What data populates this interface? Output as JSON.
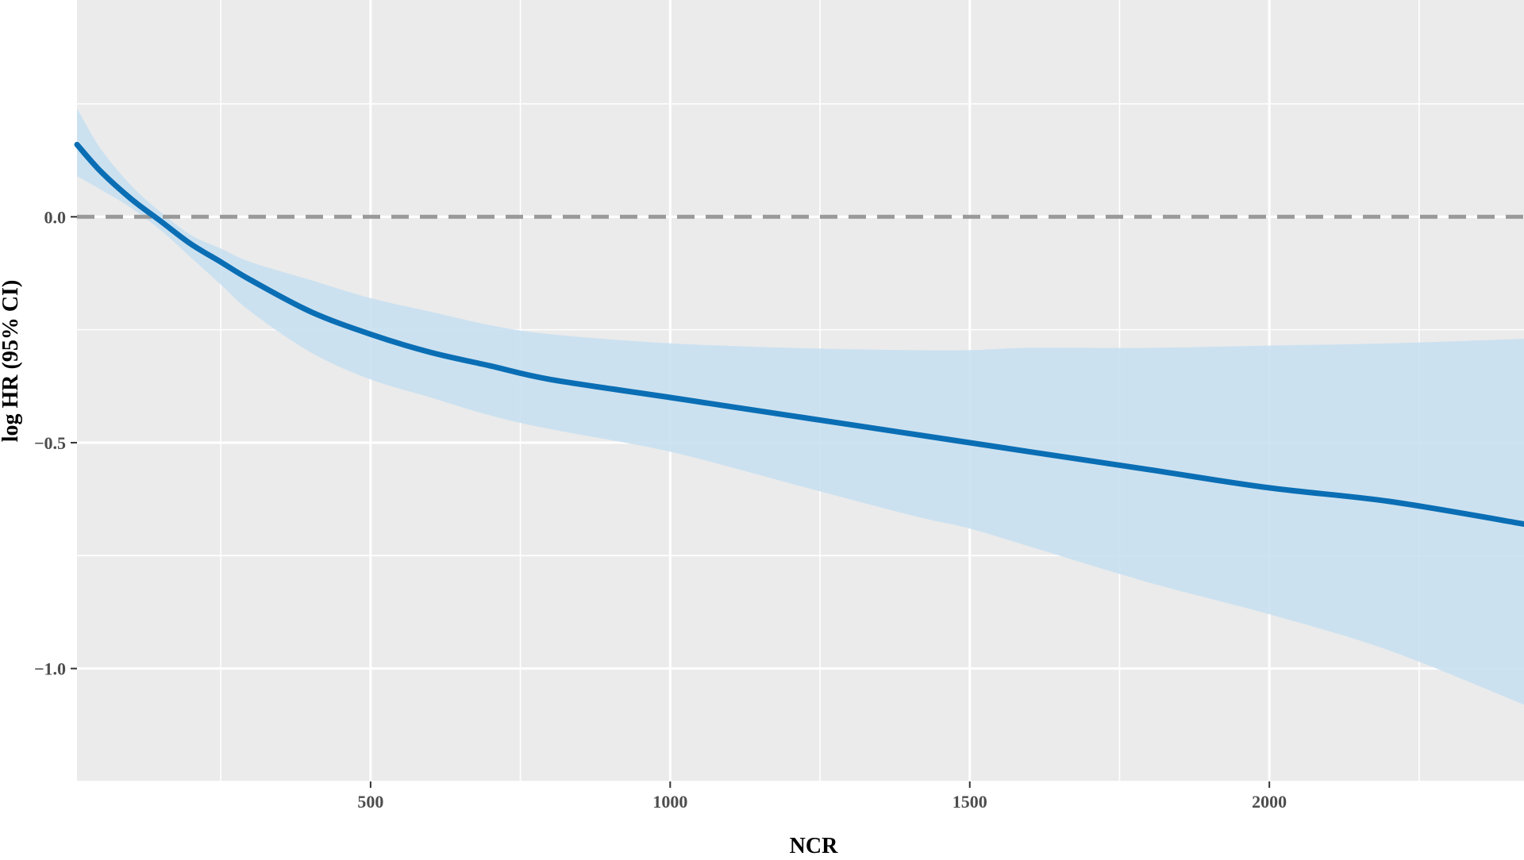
{
  "chart_data": {
    "type": "line",
    "title": "",
    "xlabel": "NCR",
    "ylabel": "log  HR (95% CI)",
    "xlim": [
      10,
      2425
    ],
    "ylim": [
      -1.25,
      0.48
    ],
    "x_ticks": [
      500,
      1000,
      1500,
      2000
    ],
    "x_tick_labels": [
      "500",
      "1000",
      "1500",
      "2000"
    ],
    "y_ticks": [
      -1.0,
      -0.5,
      0.0
    ],
    "y_tick_labels": [
      "−1.0",
      "−0.5",
      "0.0"
    ],
    "grid": true,
    "reference_line": {
      "y": 0.0,
      "style": "dashed",
      "color": "#999999"
    },
    "series": [
      {
        "line_color": "#0a6eb4",
        "ribbon_color": "#c9e0f1",
        "x": [
          10,
          50,
          100,
          150,
          200,
          250,
          300,
          400,
          500,
          600,
          700,
          800,
          1000,
          1200,
          1400,
          1500,
          1600,
          1800,
          2000,
          2200,
          2425
        ],
        "y": [
          0.16,
          0.1,
          0.04,
          -0.01,
          -0.06,
          -0.1,
          -0.14,
          -0.21,
          -0.26,
          -0.3,
          -0.33,
          -0.36,
          -0.4,
          -0.44,
          -0.48,
          -0.5,
          -0.52,
          -0.56,
          -0.6,
          -0.63,
          -0.68
        ],
        "lower": [
          0.09,
          0.06,
          0.02,
          -0.03,
          -0.09,
          -0.15,
          -0.21,
          -0.3,
          -0.36,
          -0.4,
          -0.44,
          -0.47,
          -0.52,
          -0.59,
          -0.66,
          -0.69,
          -0.73,
          -0.81,
          -0.88,
          -0.96,
          -1.08
        ],
        "upper": [
          0.24,
          0.15,
          0.07,
          0.01,
          -0.04,
          -0.07,
          -0.1,
          -0.14,
          -0.18,
          -0.21,
          -0.24,
          -0.26,
          -0.28,
          -0.29,
          -0.295,
          -0.295,
          -0.29,
          -0.29,
          -0.285,
          -0.28,
          -0.27
        ]
      }
    ],
    "colors": {
      "panel_background": "#ebebeb",
      "grid": "#ffffff",
      "tick_text": "#4d4d4d",
      "axis_title": "#000000"
    }
  }
}
